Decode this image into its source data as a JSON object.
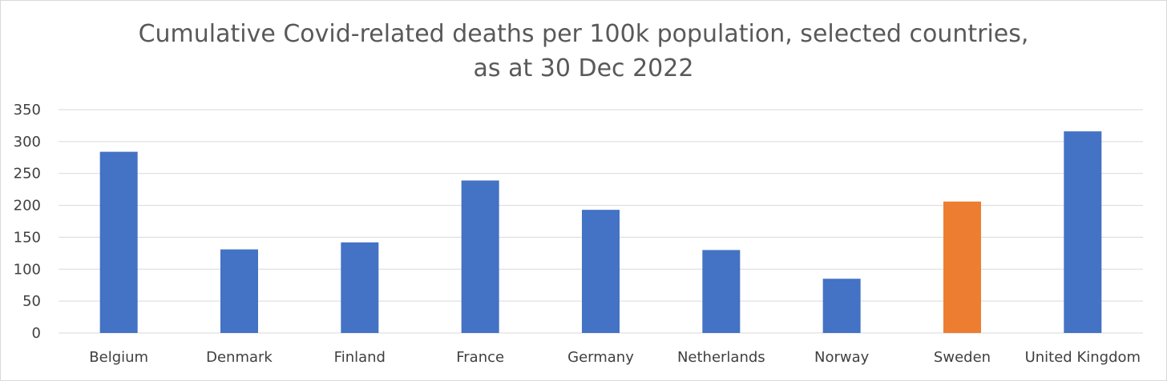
{
  "chart_data": {
    "type": "bar",
    "title_lines": [
      "Cumulative Covid-related deaths per 100k population, selected countries,",
      "as at 30 Dec 2022"
    ],
    "xlabel": "",
    "ylabel": "",
    "categories": [
      "Belgium",
      "Denmark",
      "Finland",
      "France",
      "Germany",
      "Netherlands",
      "Norway",
      "Sweden",
      "United Kingdom"
    ],
    "values": [
      284,
      131,
      142,
      239,
      193,
      130,
      85,
      206,
      316
    ],
    "ylim": [
      0,
      350
    ],
    "yticks": [
      0,
      50,
      100,
      150,
      200,
      250,
      300,
      350
    ],
    "grid": true,
    "colors": {
      "default": "#4472C4",
      "highlight": "#ED7D31",
      "highlight_category": "Sweden",
      "grid": "#d9d9d9",
      "text": "#595959"
    }
  }
}
